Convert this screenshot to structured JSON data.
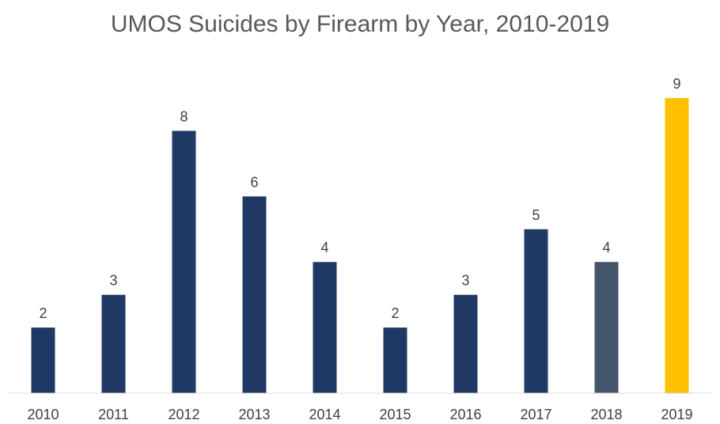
{
  "chart_data": {
    "type": "bar",
    "title": "UMOS Suicides by Firearm by Year, 2010-2019",
    "categories": [
      "2010",
      "2011",
      "2012",
      "2013",
      "2014",
      "2015",
      "2016",
      "2017",
      "2018",
      "2019"
    ],
    "values": [
      2,
      3,
      8,
      6,
      4,
      2,
      3,
      5,
      4,
      9
    ],
    "bar_colors": [
      "#1f3864",
      "#1f3864",
      "#1f3864",
      "#1f3864",
      "#1f3864",
      "#1f3864",
      "#1f3864",
      "#1f3864",
      "#44546a",
      "#ffc000"
    ],
    "ylim": [
      0,
      9
    ],
    "xlabel": "",
    "ylabel": "",
    "grid": false,
    "legend": "none",
    "data_labels": true
  }
}
